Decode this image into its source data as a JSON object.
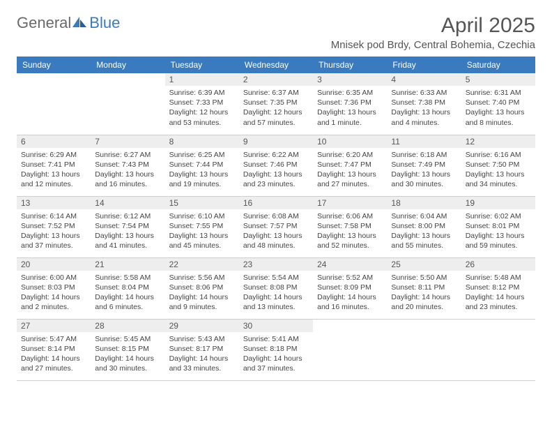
{
  "logo": {
    "text1": "General",
    "text2": "Blue"
  },
  "title": "April 2025",
  "subtitle": "Mnisek pod Brdy, Central Bohemia, Czechia",
  "colors": {
    "header_bg": "#3a7bbf",
    "header_fg": "#ffffff",
    "daynum_bg": "#eeeeee",
    "text": "#555555",
    "border": "#cfcfcf"
  },
  "day_headers": [
    "Sunday",
    "Monday",
    "Tuesday",
    "Wednesday",
    "Thursday",
    "Friday",
    "Saturday"
  ],
  "weeks": [
    [
      {
        "day": "",
        "sunrise": "",
        "sunset": "",
        "daylight": ""
      },
      {
        "day": "",
        "sunrise": "",
        "sunset": "",
        "daylight": ""
      },
      {
        "day": "1",
        "sunrise": "Sunrise: 6:39 AM",
        "sunset": "Sunset: 7:33 PM",
        "daylight": "Daylight: 12 hours and 53 minutes."
      },
      {
        "day": "2",
        "sunrise": "Sunrise: 6:37 AM",
        "sunset": "Sunset: 7:35 PM",
        "daylight": "Daylight: 12 hours and 57 minutes."
      },
      {
        "day": "3",
        "sunrise": "Sunrise: 6:35 AM",
        "sunset": "Sunset: 7:36 PM",
        "daylight": "Daylight: 13 hours and 1 minute."
      },
      {
        "day": "4",
        "sunrise": "Sunrise: 6:33 AM",
        "sunset": "Sunset: 7:38 PM",
        "daylight": "Daylight: 13 hours and 4 minutes."
      },
      {
        "day": "5",
        "sunrise": "Sunrise: 6:31 AM",
        "sunset": "Sunset: 7:40 PM",
        "daylight": "Daylight: 13 hours and 8 minutes."
      }
    ],
    [
      {
        "day": "6",
        "sunrise": "Sunrise: 6:29 AM",
        "sunset": "Sunset: 7:41 PM",
        "daylight": "Daylight: 13 hours and 12 minutes."
      },
      {
        "day": "7",
        "sunrise": "Sunrise: 6:27 AM",
        "sunset": "Sunset: 7:43 PM",
        "daylight": "Daylight: 13 hours and 16 minutes."
      },
      {
        "day": "8",
        "sunrise": "Sunrise: 6:25 AM",
        "sunset": "Sunset: 7:44 PM",
        "daylight": "Daylight: 13 hours and 19 minutes."
      },
      {
        "day": "9",
        "sunrise": "Sunrise: 6:22 AM",
        "sunset": "Sunset: 7:46 PM",
        "daylight": "Daylight: 13 hours and 23 minutes."
      },
      {
        "day": "10",
        "sunrise": "Sunrise: 6:20 AM",
        "sunset": "Sunset: 7:47 PM",
        "daylight": "Daylight: 13 hours and 27 minutes."
      },
      {
        "day": "11",
        "sunrise": "Sunrise: 6:18 AM",
        "sunset": "Sunset: 7:49 PM",
        "daylight": "Daylight: 13 hours and 30 minutes."
      },
      {
        "day": "12",
        "sunrise": "Sunrise: 6:16 AM",
        "sunset": "Sunset: 7:50 PM",
        "daylight": "Daylight: 13 hours and 34 minutes."
      }
    ],
    [
      {
        "day": "13",
        "sunrise": "Sunrise: 6:14 AM",
        "sunset": "Sunset: 7:52 PM",
        "daylight": "Daylight: 13 hours and 37 minutes."
      },
      {
        "day": "14",
        "sunrise": "Sunrise: 6:12 AM",
        "sunset": "Sunset: 7:54 PM",
        "daylight": "Daylight: 13 hours and 41 minutes."
      },
      {
        "day": "15",
        "sunrise": "Sunrise: 6:10 AM",
        "sunset": "Sunset: 7:55 PM",
        "daylight": "Daylight: 13 hours and 45 minutes."
      },
      {
        "day": "16",
        "sunrise": "Sunrise: 6:08 AM",
        "sunset": "Sunset: 7:57 PM",
        "daylight": "Daylight: 13 hours and 48 minutes."
      },
      {
        "day": "17",
        "sunrise": "Sunrise: 6:06 AM",
        "sunset": "Sunset: 7:58 PM",
        "daylight": "Daylight: 13 hours and 52 minutes."
      },
      {
        "day": "18",
        "sunrise": "Sunrise: 6:04 AM",
        "sunset": "Sunset: 8:00 PM",
        "daylight": "Daylight: 13 hours and 55 minutes."
      },
      {
        "day": "19",
        "sunrise": "Sunrise: 6:02 AM",
        "sunset": "Sunset: 8:01 PM",
        "daylight": "Daylight: 13 hours and 59 minutes."
      }
    ],
    [
      {
        "day": "20",
        "sunrise": "Sunrise: 6:00 AM",
        "sunset": "Sunset: 8:03 PM",
        "daylight": "Daylight: 14 hours and 2 minutes."
      },
      {
        "day": "21",
        "sunrise": "Sunrise: 5:58 AM",
        "sunset": "Sunset: 8:04 PM",
        "daylight": "Daylight: 14 hours and 6 minutes."
      },
      {
        "day": "22",
        "sunrise": "Sunrise: 5:56 AM",
        "sunset": "Sunset: 8:06 PM",
        "daylight": "Daylight: 14 hours and 9 minutes."
      },
      {
        "day": "23",
        "sunrise": "Sunrise: 5:54 AM",
        "sunset": "Sunset: 8:08 PM",
        "daylight": "Daylight: 14 hours and 13 minutes."
      },
      {
        "day": "24",
        "sunrise": "Sunrise: 5:52 AM",
        "sunset": "Sunset: 8:09 PM",
        "daylight": "Daylight: 14 hours and 16 minutes."
      },
      {
        "day": "25",
        "sunrise": "Sunrise: 5:50 AM",
        "sunset": "Sunset: 8:11 PM",
        "daylight": "Daylight: 14 hours and 20 minutes."
      },
      {
        "day": "26",
        "sunrise": "Sunrise: 5:48 AM",
        "sunset": "Sunset: 8:12 PM",
        "daylight": "Daylight: 14 hours and 23 minutes."
      }
    ],
    [
      {
        "day": "27",
        "sunrise": "Sunrise: 5:47 AM",
        "sunset": "Sunset: 8:14 PM",
        "daylight": "Daylight: 14 hours and 27 minutes."
      },
      {
        "day": "28",
        "sunrise": "Sunrise: 5:45 AM",
        "sunset": "Sunset: 8:15 PM",
        "daylight": "Daylight: 14 hours and 30 minutes."
      },
      {
        "day": "29",
        "sunrise": "Sunrise: 5:43 AM",
        "sunset": "Sunset: 8:17 PM",
        "daylight": "Daylight: 14 hours and 33 minutes."
      },
      {
        "day": "30",
        "sunrise": "Sunrise: 5:41 AM",
        "sunset": "Sunset: 8:18 PM",
        "daylight": "Daylight: 14 hours and 37 minutes."
      },
      {
        "day": "",
        "sunrise": "",
        "sunset": "",
        "daylight": ""
      },
      {
        "day": "",
        "sunrise": "",
        "sunset": "",
        "daylight": ""
      },
      {
        "day": "",
        "sunrise": "",
        "sunset": "",
        "daylight": ""
      }
    ]
  ]
}
